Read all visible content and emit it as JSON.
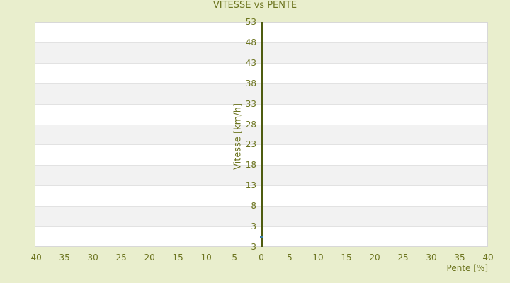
{
  "chart_data": {
    "type": "scatter",
    "title": "VITESSE vs PENTE",
    "xlabel": "Pente [%]",
    "ylabel": "Vitesse [km/h]",
    "x_ticks": [
      -40,
      -35,
      -30,
      -25,
      -20,
      -15,
      -10,
      -5,
      0,
      5,
      10,
      15,
      20,
      25,
      30,
      35,
      40
    ],
    "y_ticks": [
      53,
      48,
      43,
      38,
      33,
      28,
      23,
      18,
      13,
      8,
      3
    ],
    "y_axis_min_label": "3",
    "xlim": [
      -40,
      40
    ],
    "ylim_top": 53,
    "series": [
      {
        "name": "Vitesse",
        "points": [
          [
            0,
            0.5
          ]
        ]
      }
    ],
    "grid": true,
    "legend": "none",
    "colors": {
      "background": "#e9eecd",
      "text": "#6d7520",
      "band_light": "#ffffff",
      "band_dark": "#f2f2f2",
      "gridline": "#e2e2e2",
      "plot_border": "#d8d8d8",
      "axis_line": "#4e5c10",
      "marker": "#3a7ca5"
    }
  }
}
